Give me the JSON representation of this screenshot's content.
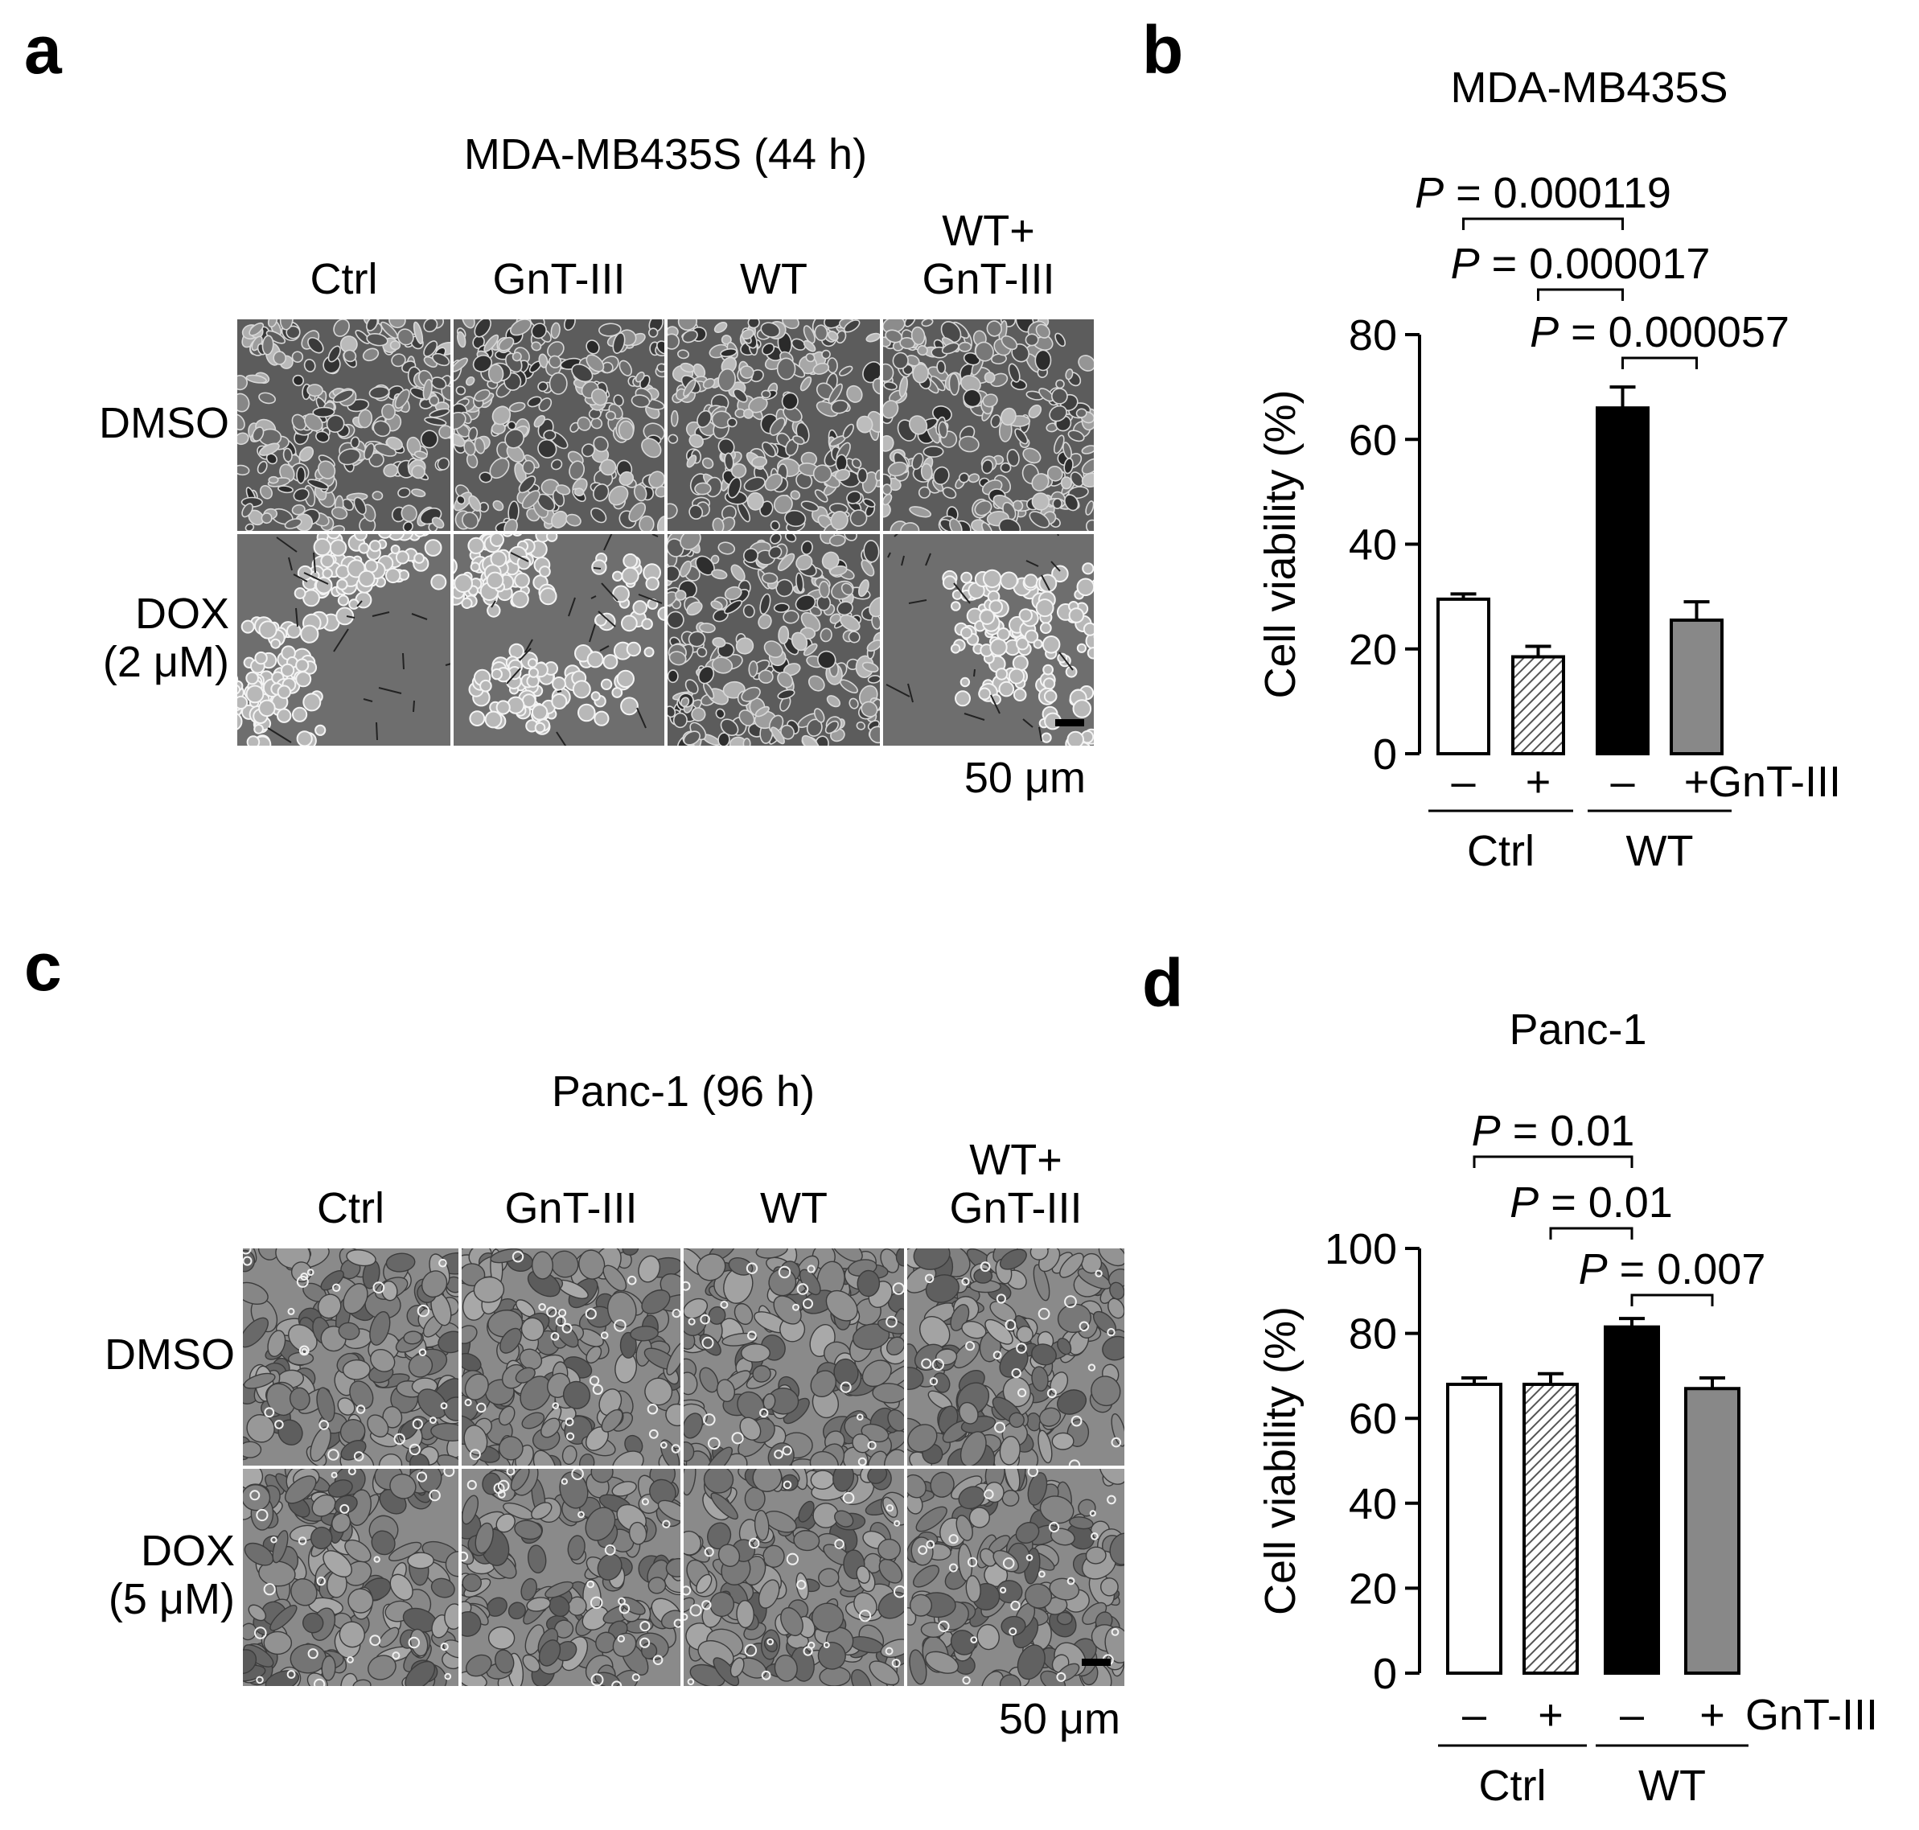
{
  "panel_labels": {
    "a": "a",
    "b": "b",
    "c": "c",
    "d": "d"
  },
  "panel_a": {
    "title": "MDA-MB435S (44 h)",
    "columns": [
      "Ctrl",
      "GnT-III",
      "WT",
      "WT+\nGnT-III"
    ],
    "column_lines": [
      [
        "Ctrl"
      ],
      [
        "GnT-III"
      ],
      [
        "WT"
      ],
      [
        "WT+",
        "GnT-III"
      ]
    ],
    "rows": [
      "DMSO",
      "DOX\n(2 μM)"
    ],
    "row_lines": [
      [
        "DMSO"
      ],
      [
        "DOX",
        "(2 μM)"
      ]
    ],
    "scale_bar": "50 μm"
  },
  "panel_c": {
    "title": "Panc-1 (96 h)",
    "columns": [
      "Ctrl",
      "GnT-III",
      "WT",
      "WT+\nGnT-III"
    ],
    "column_lines": [
      [
        "Ctrl"
      ],
      [
        "GnT-III"
      ],
      [
        "WT"
      ],
      [
        "WT+",
        "GnT-III"
      ]
    ],
    "rows": [
      "DMSO",
      "DOX\n(5 μM)"
    ],
    "row_lines": [
      [
        "DMSO"
      ],
      [
        "DOX",
        "(5 μM)"
      ]
    ],
    "scale_bar": "50 μm"
  },
  "chart_data": [
    {
      "panel": "b",
      "type": "bar",
      "title": "MDA-MB435S",
      "ylabel": "Cell viability (%)",
      "ylim": [
        0,
        80
      ],
      "yticks": [
        0,
        20,
        40,
        60,
        80
      ],
      "categories": [
        "–",
        "+",
        "–",
        "+"
      ],
      "row_label": "GnT-III",
      "groups": [
        {
          "label": "Ctrl",
          "bars": [
            0,
            1
          ]
        },
        {
          "label": "WT",
          "bars": [
            2,
            3
          ]
        }
      ],
      "values": [
        29.5,
        18.5,
        66,
        25.5
      ],
      "errors": [
        1,
        2,
        4,
        3.5
      ],
      "fills": [
        "white",
        "hatched",
        "black",
        "gray"
      ],
      "comparisons": [
        {
          "from": 0,
          "to": 2,
          "text": "= 0.000119"
        },
        {
          "from": 1,
          "to": 2,
          "text": "= 0.000017"
        },
        {
          "from": 2,
          "to": 3,
          "text": "= 0.000057"
        }
      ],
      "p_symbol": "P"
    },
    {
      "panel": "d",
      "type": "bar",
      "title": "Panc-1",
      "ylabel": "Cell viability (%)",
      "ylim": [
        0,
        100
      ],
      "yticks": [
        0,
        20,
        40,
        60,
        80,
        100
      ],
      "categories": [
        "–",
        "+",
        "–",
        "+"
      ],
      "row_label": "GnT-III",
      "groups": [
        {
          "label": "Ctrl",
          "bars": [
            0,
            1
          ]
        },
        {
          "label": "WT",
          "bars": [
            2,
            3
          ]
        }
      ],
      "values": [
        68,
        68,
        81.5,
        67
      ],
      "errors": [
        1.5,
        2.5,
        2,
        2.5
      ],
      "fills": [
        "white",
        "hatched",
        "black",
        "gray"
      ],
      "comparisons": [
        {
          "from": 0,
          "to": 2,
          "text": "= 0.01"
        },
        {
          "from": 1,
          "to": 2,
          "text": "= 0.01"
        },
        {
          "from": 2,
          "to": 3,
          "text": "= 0.007"
        }
      ],
      "p_symbol": "P"
    }
  ],
  "colors": {
    "white_bar": "#ffffff",
    "black_bar": "#000000",
    "gray_bar": "#888888",
    "hatch": "#555555"
  }
}
